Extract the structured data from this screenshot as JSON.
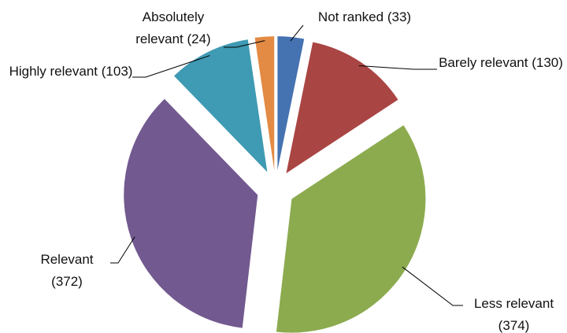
{
  "chart_data": {
    "type": "pie",
    "categories": [
      "Not ranked",
      "Barely relevant",
      "Less relevant",
      "Relevant",
      "Highly relevant",
      "Absolutely relevant"
    ],
    "values": [
      33,
      130,
      374,
      372,
      103,
      24
    ],
    "value_labels": [
      "(33)",
      "(130)",
      "(374)",
      "(372)",
      "(103)",
      "(24)"
    ],
    "colors": [
      "#4572b0",
      "#a94543",
      "#8cab4f",
      "#72598f",
      "#3f9ab3",
      "#e38a44"
    ]
  }
}
